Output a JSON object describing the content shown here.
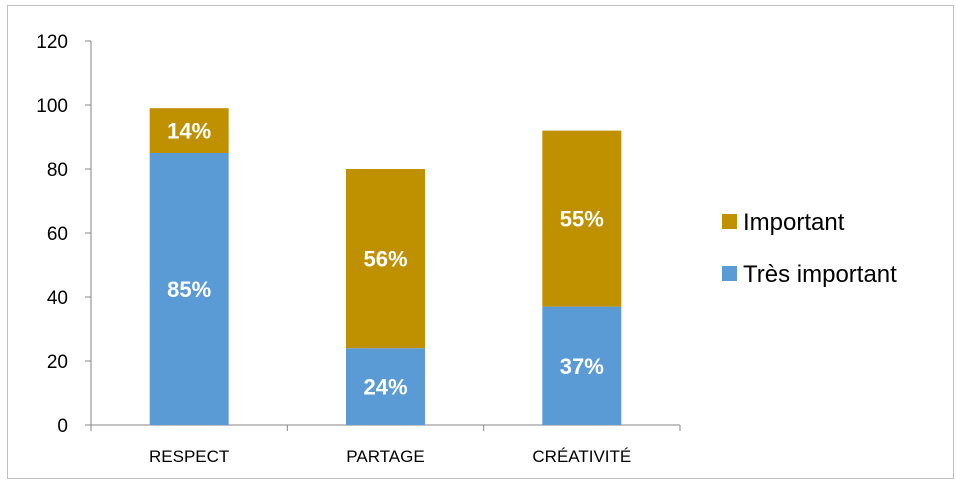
{
  "chart_data": {
    "type": "bar",
    "stacked": true,
    "categories": [
      "RESPECT",
      "PARTAGE",
      "CRÉATIVITÉ"
    ],
    "series": [
      {
        "name": "Très important",
        "values": [
          85,
          24,
          37
        ],
        "labels": [
          "85%",
          "24%",
          "37%"
        ],
        "color": "#5b9bd5"
      },
      {
        "name": "Important",
        "values": [
          14,
          56,
          55
        ],
        "labels": [
          "14%",
          "56%",
          "55%"
        ],
        "color": "#bf9000"
      }
    ],
    "ylim": [
      0,
      120
    ],
    "yticks": [
      0,
      20,
      40,
      60,
      80,
      100,
      120
    ],
    "grid": false,
    "legend": "right",
    "legend_order": [
      "Important",
      "Très important"
    ]
  }
}
